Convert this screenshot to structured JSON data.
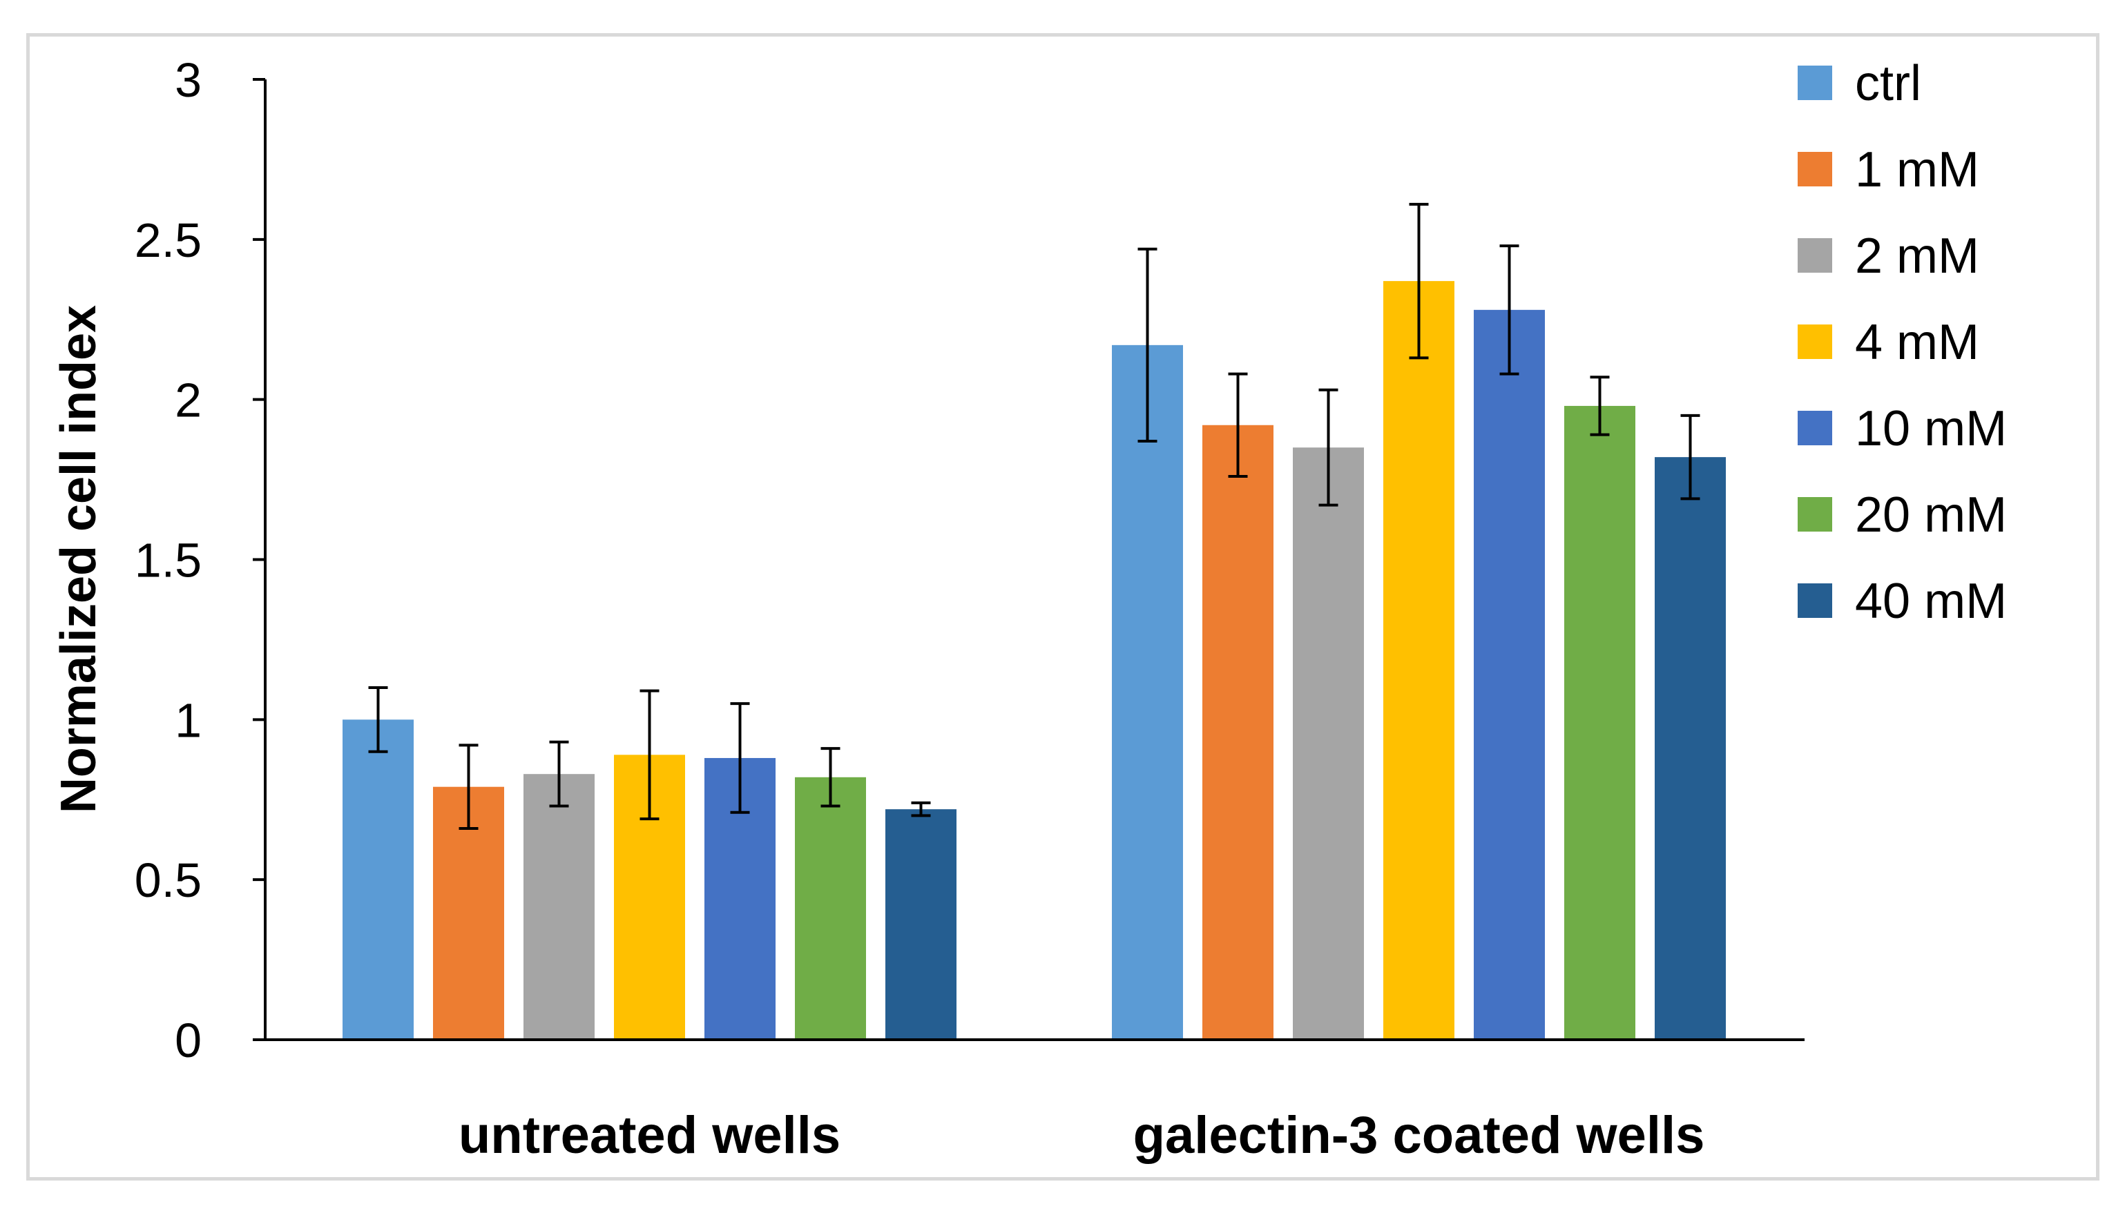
{
  "chart_data": {
    "type": "bar",
    "title": "",
    "xlabel": "",
    "ylabel": "Normalized cell index",
    "ylim": [
      0,
      3
    ],
    "yticks": [
      0,
      0.5,
      1,
      1.5,
      2,
      2.5,
      3
    ],
    "ytick_labels": [
      "0",
      "0.5",
      "1",
      "1.5",
      "2",
      "2.5",
      "3"
    ],
    "grid": false,
    "legend_position": "right",
    "categories": [
      "untreated wells",
      "galectin-3 coated wells"
    ],
    "series": [
      {
        "name": "ctrl",
        "color": "#5b9bd5",
        "values": [
          1.0,
          2.17
        ],
        "errors": [
          0.1,
          0.3
        ]
      },
      {
        "name": "1 mM",
        "color": "#ed7d31",
        "values": [
          0.79,
          1.92
        ],
        "errors": [
          0.13,
          0.16
        ]
      },
      {
        "name": "2 mM",
        "color": "#a5a5a5",
        "values": [
          0.83,
          1.85
        ],
        "errors": [
          0.1,
          0.18
        ]
      },
      {
        "name": "4 mM",
        "color": "#ffc000",
        "values": [
          0.89,
          2.37
        ],
        "errors": [
          0.2,
          0.24
        ]
      },
      {
        "name": "10 mM",
        "color": "#4472c4",
        "values": [
          0.88,
          2.28
        ],
        "errors": [
          0.17,
          0.2
        ]
      },
      {
        "name": "20 mM",
        "color": "#70ad47",
        "values": [
          0.82,
          1.98
        ],
        "errors": [
          0.09,
          0.09
        ]
      },
      {
        "name": "40 mM",
        "color": "#255e91",
        "values": [
          0.72,
          1.82
        ],
        "errors": [
          0.02,
          0.13
        ]
      }
    ]
  }
}
